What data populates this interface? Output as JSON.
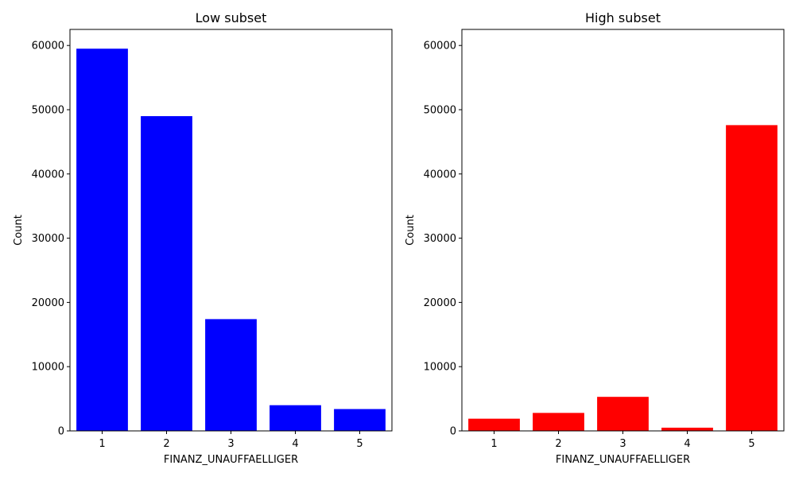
{
  "chart_data": [
    {
      "type": "bar",
      "title": "Low subset",
      "xlabel": "FINANZ_UNAUFFAELLIGER",
      "ylabel": "Count",
      "categories": [
        "1",
        "2",
        "3",
        "4",
        "5"
      ],
      "values": [
        59500,
        49000,
        17400,
        4000,
        3400
      ],
      "ylim": [
        0,
        62500
      ],
      "yticks": [
        0,
        10000,
        20000,
        30000,
        40000,
        50000,
        60000
      ],
      "bar_color": "#0000ff",
      "grid": false
    },
    {
      "type": "bar",
      "title": "High subset",
      "xlabel": "FINANZ_UNAUFFAELLIGER",
      "ylabel": "Count",
      "categories": [
        "1",
        "2",
        "3",
        "4",
        "5"
      ],
      "values": [
        1900,
        2800,
        5300,
        500,
        47600
      ],
      "ylim": [
        0,
        62500
      ],
      "yticks": [
        0,
        10000,
        20000,
        30000,
        40000,
        50000,
        60000
      ],
      "bar_color": "#ff0000",
      "grid": false
    }
  ]
}
